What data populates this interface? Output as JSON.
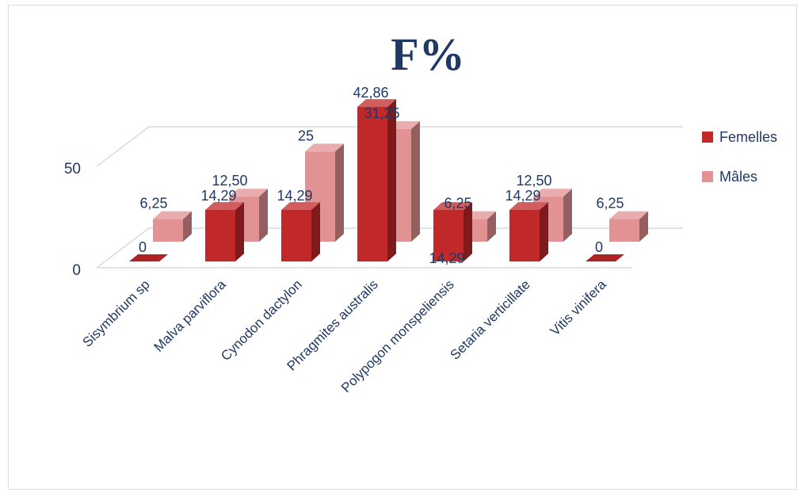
{
  "chart_data": {
    "type": "bar",
    "title": "F%",
    "xlabel": "",
    "ylabel": "",
    "ylim": [
      0,
      50
    ],
    "y_ticks": [
      "0",
      "50"
    ],
    "legend_position": "right",
    "grid": true,
    "categories": [
      "Sisymbrium sp",
      "Malva parviflora",
      "Cynodon dactylon",
      "Phragmites australis",
      "Polypogon monspeliensis",
      "Setaria verticillate",
      "Vitis vinifera"
    ],
    "series": [
      {
        "name": "Femelles",
        "color": "#c0282a",
        "values": [
          0,
          14.29,
          14.29,
          42.86,
          14.29,
          14.29,
          0
        ],
        "labels": [
          "0",
          "14,29",
          "14,29",
          "42,86",
          "14,29",
          "14,29",
          "0"
        ]
      },
      {
        "name": "Mâles",
        "color": "#e39293",
        "values": [
          6.25,
          12.5,
          25,
          31.25,
          6.25,
          12.5,
          6.25
        ],
        "labels": [
          "6,25",
          "12,50",
          "25",
          "31,25",
          "6,25",
          "12,50",
          "6,25"
        ]
      }
    ]
  }
}
